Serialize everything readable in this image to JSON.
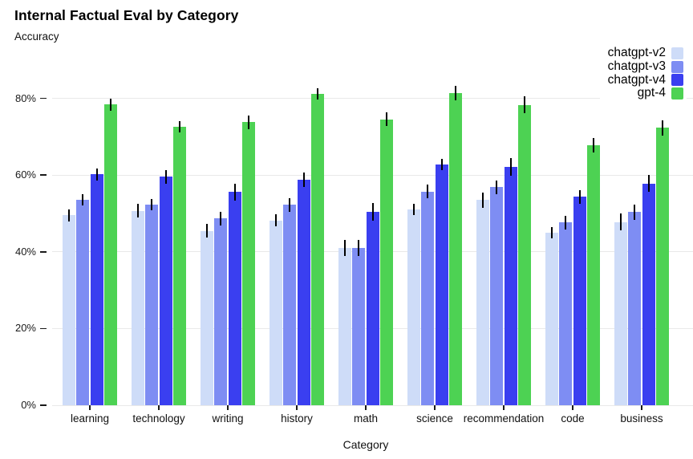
{
  "title": "Internal Factual Eval by Category",
  "subtitle": "Accuracy",
  "chart_data": {
    "type": "bar",
    "title": "Internal Factual Eval by Category",
    "ylabel": "Accuracy",
    "xlabel": "Category",
    "ylim": [
      0,
      85
    ],
    "yticks": [
      0,
      20,
      40,
      60,
      80
    ],
    "ytick_labels": [
      "0%",
      "20%",
      "40%",
      "60%",
      "80%"
    ],
    "grid": true,
    "legend_position": "top-right",
    "error_bars": true,
    "categories": [
      "learning",
      "technology",
      "writing",
      "history",
      "math",
      "science",
      "recommendation",
      "code",
      "business"
    ],
    "series": [
      {
        "name": "chatgpt-v2",
        "color": "#cedcf8",
        "values": [
          49.5,
          50.7,
          45.5,
          48.2,
          41.0,
          51.0,
          53.5,
          45.0,
          47.8
        ],
        "errors": [
          1.5,
          1.8,
          1.8,
          1.5,
          2.0,
          1.5,
          2.0,
          1.5,
          2.2
        ]
      },
      {
        "name": "chatgpt-v3",
        "color": "#7e8df3",
        "values": [
          53.5,
          52.3,
          48.7,
          52.2,
          41.0,
          55.7,
          56.8,
          47.6,
          50.4
        ],
        "errors": [
          1.5,
          1.5,
          1.8,
          1.8,
          2.0,
          1.8,
          1.8,
          1.8,
          2.0
        ]
      },
      {
        "name": "chatgpt-v4",
        "color": "#3a3ff0",
        "values": [
          60.2,
          59.6,
          55.6,
          58.8,
          50.5,
          62.7,
          62.1,
          54.3,
          57.8
        ],
        "errors": [
          1.6,
          1.8,
          2.2,
          1.8,
          2.3,
          1.5,
          2.3,
          1.8,
          2.2
        ]
      },
      {
        "name": "gpt-4",
        "color": "#4dd253",
        "values": [
          78.4,
          72.6,
          73.8,
          81.2,
          74.5,
          81.4,
          78.3,
          67.8,
          72.3
        ],
        "errors": [
          1.6,
          1.5,
          1.8,
          1.5,
          1.8,
          1.8,
          2.2,
          1.8,
          2.0
        ]
      }
    ]
  },
  "colors": {
    "background": "#ffffff",
    "gridline": "#e9e9e9",
    "axis_text": "#1a1a1a",
    "error_bar": "#000000"
  }
}
